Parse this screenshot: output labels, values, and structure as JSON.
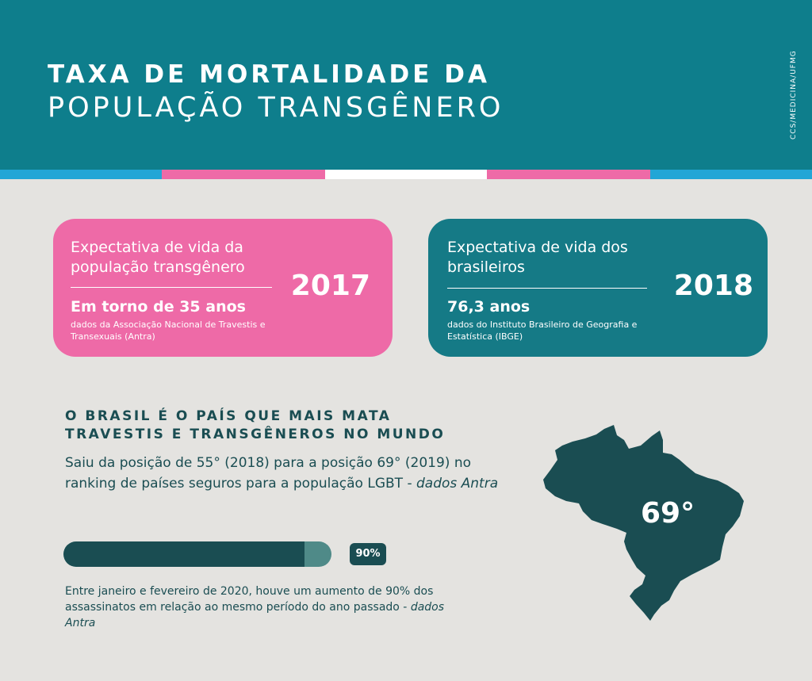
{
  "header": {
    "title_line1": "TAXA DE MORTALIDADE DA",
    "title_line2": "POPULAÇÃO TRANSGÊNERO",
    "credit": "CCS/MEDICINA/UFMG",
    "background_color": "#0e7e8c"
  },
  "flag_stripe": {
    "colors": [
      "#22a6d6",
      "#ee6aa7",
      "#ffffff",
      "#ee6aa7",
      "#22a6d6"
    ]
  },
  "cards": [
    {
      "heading": "Expectativa de vida da população transgênero",
      "value": "Em torno de 35 anos",
      "source": "dados da Associação Nacional de Travestis e Transexuais (Antra)",
      "year": "2017",
      "color": "#ee6aa7"
    },
    {
      "heading": "Expectativa de vida dos brasileiros",
      "value": "76,3 anos",
      "source": "dados do Instituto Brasileiro de Geografia e Estatística (IBGE)",
      "year": "2018",
      "color": "#157a86"
    }
  ],
  "ranking": {
    "title_line1": "O BRASIL É O PAÍS QUE MAIS MATA",
    "title_line2": "TRAVESTIS E TRANSGÊNEROS NO MUNDO",
    "body": "Saiu da posição de 55° (2018) para a posição 69° (2019) no ranking de países seguros para a população LGBT - ",
    "body_source": "dados Antra",
    "map_label": "69°"
  },
  "increase": {
    "percent": 90,
    "label": "90%",
    "text": "Entre janeiro e fevereiro de 2020, houve um aumento de 90% dos assassinatos em relação ao mesmo período do ano passado - ",
    "source": "dados Antra"
  }
}
